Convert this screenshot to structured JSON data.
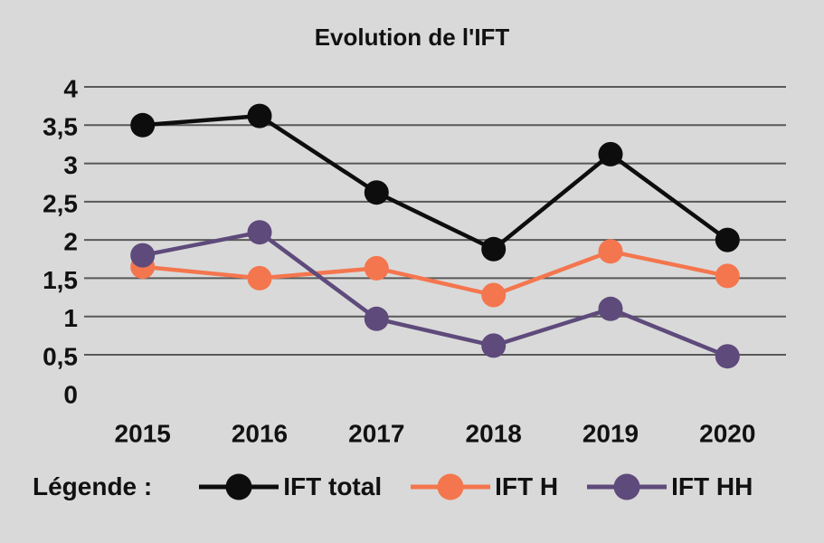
{
  "legend": {
    "label": "Légende :"
  },
  "chart_data": {
    "type": "line",
    "title": "Evolution de l'IFT",
    "categories": [
      "2015",
      "2016",
      "2017",
      "2018",
      "2019",
      "2020"
    ],
    "series": [
      {
        "name": "IFT total",
        "color": "#0D0D0D",
        "values": [
          3.5,
          3.62,
          2.62,
          1.88,
          3.12,
          2.0
        ]
      },
      {
        "name": "IFT H",
        "color": "#F4764E",
        "values": [
          1.65,
          1.5,
          1.63,
          1.28,
          1.85,
          1.53
        ]
      },
      {
        "name": "IFT HH",
        "color": "#5E4A7B",
        "values": [
          1.8,
          2.1,
          0.97,
          0.62,
          1.1,
          0.48
        ]
      }
    ],
    "y_ticks": [
      {
        "label": "4",
        "value": 4
      },
      {
        "label": "3,5",
        "value": 3.5
      },
      {
        "label": "3",
        "value": 3
      },
      {
        "label": "2,5",
        "value": 2.5
      },
      {
        "label": "2",
        "value": 2
      },
      {
        "label": "1,5",
        "value": 1.5
      },
      {
        "label": "1",
        "value": 1
      },
      {
        "label": "0,5",
        "value": 0.5
      },
      {
        "label": "0",
        "value": 0
      }
    ],
    "ylim": [
      0,
      4
    ],
    "gridlines": {
      "from": 0.5,
      "to": 4,
      "step": 0.5,
      "color": "#595959"
    },
    "background": "#D9D9D9",
    "legend_position": "bottom"
  }
}
